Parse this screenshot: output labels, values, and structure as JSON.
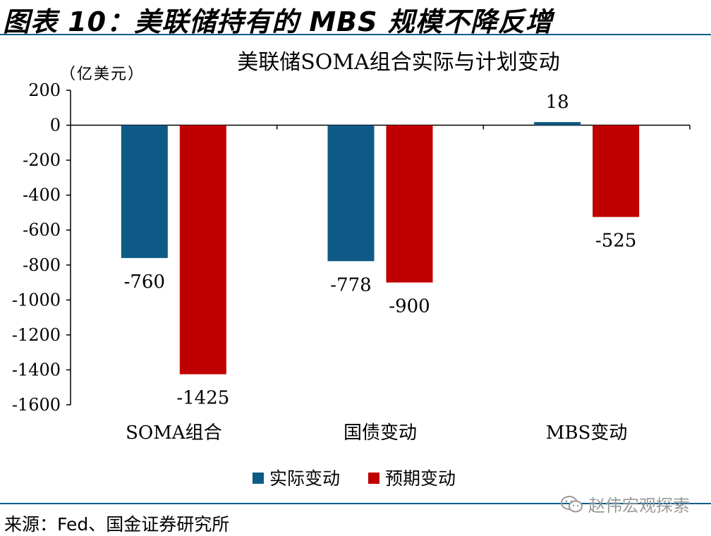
{
  "header": {
    "title": "图表 10：美联储持有的 MBS 规模不降反增"
  },
  "source": "来源：Fed、国金证券研究所",
  "watermark": {
    "text": "赵伟宏观探索",
    "icon": "wechat-icon"
  },
  "colors": {
    "actual": "#0e5a86",
    "planned": "#c00000",
    "rule": "#0b5f8b"
  },
  "chart_data": {
    "type": "bar",
    "title": "美联储SOMA组合实际与计划变动",
    "unit_label": "（亿美元）",
    "categories": [
      "SOMA组合",
      "国债变动",
      "MBS变动"
    ],
    "series": [
      {
        "name": "实际变动",
        "values": [
          -760,
          -778,
          18
        ]
      },
      {
        "name": "预期变动",
        "values": [
          -1425,
          -900,
          -525
        ]
      }
    ],
    "ylim": [
      -1600,
      200
    ],
    "yticks": [
      "200",
      "0",
      "-200",
      "-400",
      "-600",
      "-800",
      "-1000",
      "-1200",
      "-1400",
      "-1600"
    ],
    "legend": "bottom",
    "grid": false
  }
}
